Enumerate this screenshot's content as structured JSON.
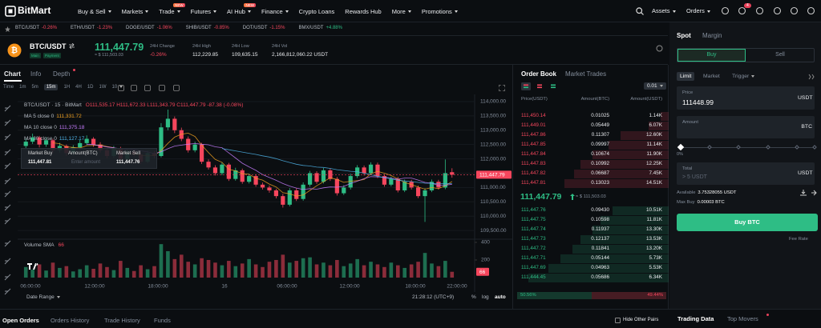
{
  "nav": {
    "logo": "BitMart",
    "items": [
      {
        "label": "Buy & Sell",
        "menu": true
      },
      {
        "label": "Markets",
        "menu": true
      },
      {
        "label": "Trade",
        "menu": true,
        "badge": "NEW"
      },
      {
        "label": "Futures",
        "menu": true
      },
      {
        "label": "AI Hub",
        "menu": true,
        "badge": "NEW"
      },
      {
        "label": "Finance",
        "menu": true
      },
      {
        "label": "Crypto Loans"
      },
      {
        "label": "Rewards Hub"
      },
      {
        "label": "More",
        "menu": true
      },
      {
        "label": "Promotions",
        "menu": true
      }
    ],
    "assets": "Assets",
    "orders": "Orders",
    "notifications": "4"
  },
  "ticker": [
    {
      "pair": "BTC/USDT",
      "change": "-0.26%"
    },
    {
      "pair": "ETH/USDT",
      "change": "-1.23%"
    },
    {
      "pair": "DOGE/USDT",
      "change": "-1.06%"
    },
    {
      "pair": "SHIB/USDT",
      "change": "-0.85%"
    },
    {
      "pair": "DOT/USDT",
      "change": "-1.15%"
    },
    {
      "pair": "BMX/USDT",
      "change": "+4.88%"
    }
  ],
  "pair": {
    "symbol": "BTC/USDT",
    "tags": [
      "Main",
      "Payment"
    ],
    "price": "111,447.79",
    "usd": "≈ $ 111,503.03",
    "stats": [
      {
        "label": "24H Change",
        "value": "-0.26%"
      },
      {
        "label": "24H High",
        "value": "112,229.85"
      },
      {
        "label": "24H Low",
        "value": "109,635.15"
      },
      {
        "label": "24H Vol",
        "value": "2,166,812,060.22 USDT"
      }
    ]
  },
  "chart_tabs": [
    "Chart",
    "Info",
    "Depth"
  ],
  "intervals": [
    "Time",
    "1m",
    "5m",
    "15m",
    "1H",
    "4H",
    "1D",
    "1W",
    "10"
  ],
  "chart": {
    "title": "BTC/USDT · 15 · BitMart",
    "ohlc": "O111,535.17 H111,672.33 L111,343.79 C111,447.79 -87.38 (-0.08%)",
    "ma": [
      {
        "label": "MA 5 close 0",
        "value": "111,331.72",
        "period": 5,
        "color": "#f0a020"
      },
      {
        "label": "MA 10 close 0",
        "value": "111,375.18",
        "period": 10,
        "color": "#c77dff"
      },
      {
        "label": "MA 30 close 0",
        "value": "111,127.17",
        "period": 30,
        "color": "#4fb3e8"
      }
    ],
    "quick_trade": {
      "buy_label": "Market Buy",
      "buy_price": "111,447.81",
      "amount_label": "Amount(BTC)",
      "amount_placeholder": "Enter amount",
      "sell_label": "Market Sell",
      "sell_price": "111,447.76"
    },
    "up_color": "#2ebd85",
    "down_color": "#f6465d",
    "ylim": [
      109280,
      114250
    ],
    "yticks": [
      {
        "value": 114000,
        "label": "114,000.00"
      },
      {
        "value": 113500,
        "label": "113,500.00"
      },
      {
        "value": 113000,
        "label": "113,000.00"
      },
      {
        "value": 112500,
        "label": "112,500.00"
      },
      {
        "value": 112000,
        "label": "112,000.00"
      },
      {
        "value": 111500,
        "label": "111,500.00"
      },
      {
        "value": 111000,
        "label": "111,000.00"
      },
      {
        "value": 110500,
        "label": "110,500.00"
      },
      {
        "value": 110000,
        "label": "110,000.00"
      },
      {
        "value": 109500,
        "label": "109,500.00"
      }
    ],
    "price_tag": {
      "value": 111447.79,
      "label": "111,447.79"
    },
    "candles": [
      [
        112450,
        112720,
        112380,
        112600
      ],
      [
        112600,
        112880,
        112520,
        112750
      ],
      [
        112750,
        112800,
        112400,
        112500
      ],
      [
        112500,
        112760,
        112420,
        112650
      ],
      [
        112650,
        112700,
        112200,
        112300
      ],
      [
        112300,
        112560,
        112220,
        112450
      ],
      [
        112450,
        112500,
        112100,
        112200
      ],
      [
        112200,
        112480,
        112120,
        112400
      ],
      [
        112400,
        112660,
        112330,
        112550
      ],
      [
        112550,
        112820,
        112480,
        112700
      ],
      [
        112700,
        112760,
        112420,
        112500
      ],
      [
        112500,
        112580,
        112220,
        112300
      ],
      [
        112300,
        112380,
        112020,
        112100
      ],
      [
        112100,
        112450,
        112030,
        112350
      ],
      [
        112350,
        112420,
        111920,
        112000
      ],
      [
        112000,
        112330,
        111940,
        112250
      ],
      [
        112250,
        112310,
        112080,
        112150
      ],
      [
        112150,
        112220,
        111820,
        111900
      ],
      [
        111900,
        112280,
        111850,
        112200
      ],
      [
        112200,
        112270,
        112020,
        112100
      ],
      [
        112100,
        113250,
        112050,
        113100
      ],
      [
        113100,
        113720,
        113000,
        113400
      ],
      [
        113400,
        113480,
        112900,
        113000
      ],
      [
        113000,
        113090,
        112620,
        112700
      ],
      [
        112700,
        112780,
        112220,
        112300
      ],
      [
        112300,
        112600,
        112230,
        112500
      ],
      [
        112500,
        112560,
        111820,
        111900
      ],
      [
        111900,
        111980,
        111630,
        111700
      ],
      [
        111700,
        111780,
        111420,
        111500
      ],
      [
        111500,
        111880,
        111430,
        111800
      ],
      [
        111800,
        111860,
        111230,
        111300
      ],
      [
        111300,
        111690,
        111240,
        111600
      ],
      [
        111600,
        111660,
        111130,
        111200
      ],
      [
        111200,
        111480,
        111140,
        111400
      ],
      [
        111400,
        111460,
        111030,
        111100
      ],
      [
        111100,
        111170,
        110930,
        111000
      ],
      [
        111000,
        111070,
        110820,
        110900
      ],
      [
        110900,
        110960,
        110620,
        110700
      ],
      [
        110700,
        110780,
        110300,
        110400
      ],
      [
        110400,
        110980,
        110340,
        110900
      ],
      [
        110900,
        110970,
        110530,
        110600
      ],
      [
        110600,
        111180,
        110540,
        111100
      ],
      [
        111100,
        111580,
        111030,
        111500
      ],
      [
        111500,
        111570,
        111130,
        111200
      ],
      [
        111200,
        111680,
        111140,
        111600
      ],
      [
        111600,
        111670,
        111230,
        111300
      ],
      [
        111300,
        111370,
        110720,
        110800
      ],
      [
        110800,
        111080,
        110740,
        111000
      ],
      [
        111000,
        111480,
        110930,
        111400
      ],
      [
        111400,
        111780,
        111330,
        111700
      ],
      [
        111700,
        111770,
        111420,
        111500
      ],
      [
        111500,
        111880,
        111430,
        111800
      ],
      [
        111800,
        111870,
        111330,
        111400
      ],
      [
        111400,
        111470,
        111030,
        111100
      ],
      [
        111100,
        111380,
        111040,
        111300
      ],
      [
        111300,
        111370,
        110830,
        110900
      ],
      [
        110900,
        111280,
        110840,
        111200
      ],
      [
        111200,
        111270,
        110930,
        111000
      ],
      [
        111000,
        111070,
        110630,
        110700
      ],
      [
        110700,
        110980,
        109800,
        110900
      ],
      [
        110900,
        111280,
        110840,
        111200
      ],
      [
        111200,
        111270,
        110930,
        111000
      ],
      [
        111000,
        111980,
        110940,
        111500
      ],
      [
        111535.17,
        111672.33,
        111343.79,
        111447.79
      ]
    ],
    "volume_label": "Volume SMA",
    "volume_value": "66",
    "volumes": [
      120,
      90,
      150,
      80,
      170,
      110,
      130,
      70,
      95,
      140,
      100,
      160,
      120,
      85,
      190,
      110,
      75,
      140,
      95,
      130,
      380,
      300,
      210,
      260,
      180,
      150,
      220,
      200,
      170,
      140,
      190,
      130,
      160,
      210,
      150,
      120,
      180,
      200,
      260,
      170,
      190,
      220,
      230,
      150,
      170,
      140,
      200,
      130,
      160,
      210,
      140,
      180,
      150,
      120,
      170,
      140,
      110,
      150,
      180,
      280,
      160,
      130,
      190,
      66
    ],
    "vlim": [
      0,
      445
    ],
    "vticks": [
      200,
      400
    ],
    "x_labels": [
      "06:00:00",
      "12:00:00",
      "18:00:00",
      "16",
      "06:00:00",
      "12:00:00",
      "18:00:00",
      "22:00:00"
    ],
    "date_range": "Date Range",
    "clock": "21:28:12 (UTC+9)",
    "scale_options": [
      "%",
      "log",
      "auto"
    ]
  },
  "order_book": {
    "tabs": [
      "Order Book",
      "Market Trades"
    ],
    "precision": "0.01",
    "headers": [
      "Price(USDT)",
      "Amount(BTC)",
      "Amount(USDT)"
    ],
    "asks": [
      [
        "111,450.14",
        "0.01025",
        "1.14K"
      ],
      [
        "111,449.01",
        "0.05449",
        "6.07K"
      ],
      [
        "111,447.86",
        "0.11307",
        "12.60K"
      ],
      [
        "111,447.85",
        "0.09997",
        "11.14K"
      ],
      [
        "111,447.84",
        "0.10674",
        "11.90K"
      ],
      [
        "111,447.83",
        "0.10992",
        "12.25K"
      ],
      [
        "111,447.82",
        "0.06687",
        "7.45K"
      ],
      [
        "111,447.81",
        "0.13023",
        "14.51K"
      ]
    ],
    "mid_price": "111,447.79",
    "mid_usd": "≈ $ 111,503.03",
    "bids": [
      [
        "111,447.76",
        "0.09430",
        "10.51K"
      ],
      [
        "111,447.75",
        "0.10598",
        "11.81K"
      ],
      [
        "111,447.74",
        "0.11937",
        "13.30K"
      ],
      [
        "111,447.73",
        "0.12137",
        "13.53K"
      ],
      [
        "111,447.72",
        "0.11841",
        "13.20K"
      ],
      [
        "111,447.71",
        "0.05144",
        "5.73K"
      ],
      [
        "111,447.69",
        "0.04963",
        "5.53K"
      ],
      [
        "111,444.45",
        "0.05686",
        "6.34K"
      ]
    ],
    "buy_ratio": "50.56%",
    "sell_ratio": "49.44%"
  },
  "trade_panel": {
    "tabs": [
      "Spot",
      "Margin"
    ],
    "sides": [
      "Buy",
      "Sell"
    ],
    "order_types": [
      "Limit",
      "Market",
      "Trigger"
    ],
    "price_label": "Price",
    "price_value": "111448.99",
    "price_unit": "USDT",
    "amount_label": "Amount",
    "amount_unit": "BTC",
    "slider_label": "0%",
    "total_label": "Total",
    "total_placeholder": "> 5 USDT",
    "total_unit": "USDT",
    "available_label": "Available",
    "available_value": "3.75328055 USDT",
    "max_buy_label": "Max Buy",
    "max_buy_value": "0.00003 BTC",
    "submit": "Buy BTC",
    "fee_rate": "Fee Rate"
  },
  "bottom": {
    "tabs": [
      "Open Orders",
      "Orders History",
      "Trade History",
      "Funds"
    ],
    "hide_other": "Hide Other Pairs",
    "right_tabs": [
      "Trading Data",
      "Top Movers"
    ]
  }
}
